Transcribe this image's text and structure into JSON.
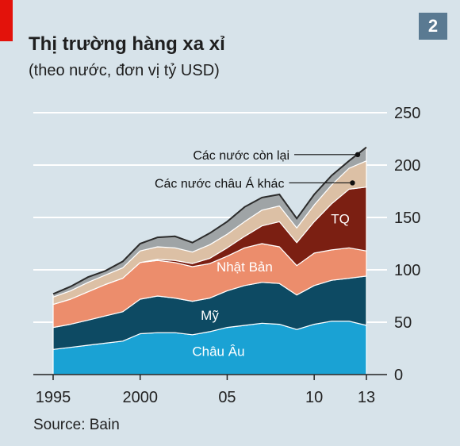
{
  "header": {
    "title": "Thị trường hàng xa xỉ",
    "subtitle": "(theo nước, đơn vị tỷ USD)",
    "figure_number": "2",
    "source": "Source: Bain"
  },
  "colors": {
    "background": "#d7e3ea",
    "accent_red": "#e3120b",
    "badge": "#5a7a92",
    "chau_au": "#1aa2d4",
    "my": "#0d4a63",
    "nhat_ban": "#ec8d6c",
    "tq": "#7b1f12",
    "chau_a_khac": "#dcc0a5",
    "con_lai": "#9fa4a6"
  },
  "chart_data": {
    "type": "area",
    "stacked": true,
    "x": [
      1995,
      1996,
      1997,
      1998,
      1999,
      2000,
      2001,
      2002,
      2003,
      2004,
      2005,
      2006,
      2007,
      2008,
      2009,
      2010,
      2011,
      2012,
      2013
    ],
    "ylim": [
      0,
      250
    ],
    "y_ticks": [
      "0",
      "50",
      "100",
      "150",
      "200",
      "250"
    ],
    "x_ticks": [
      {
        "value": 1995,
        "label": "1995"
      },
      {
        "value": 2000,
        "label": "2000"
      },
      {
        "value": 2005,
        "label": "05"
      },
      {
        "value": 2010,
        "label": "10"
      },
      {
        "value": 2013,
        "label": "13"
      }
    ],
    "series": [
      {
        "name": "Châu Âu",
        "color": "#1aa2d4",
        "label_color": "#ffffff",
        "values": [
          24,
          26,
          28,
          30,
          32,
          39,
          40,
          40,
          38,
          41,
          45,
          47,
          49,
          48,
          43,
          48,
          51,
          51,
          47
        ]
      },
      {
        "name": "Mỹ",
        "color": "#0d4a63",
        "label_color": "#ffffff",
        "values": [
          21,
          22,
          24,
          26,
          28,
          33,
          35,
          33,
          32,
          32,
          35,
          38,
          39,
          39,
          33,
          37,
          39,
          41,
          47
        ]
      },
      {
        "name": "Nhật Bản",
        "color": "#ec8d6c",
        "label_color": "#ffffff",
        "values": [
          22,
          24,
          27,
          30,
          32,
          35,
          34,
          34,
          33,
          33,
          33,
          36,
          37,
          35,
          28,
          31,
          29,
          29,
          24
        ]
      },
      {
        "name": "TQ",
        "color": "#7b1f12",
        "label_color": "#ffffff",
        "values": [
          0,
          0,
          0,
          0,
          0,
          0,
          1,
          2,
          3,
          5,
          8,
          11,
          17,
          24,
          22,
          30,
          44,
          56,
          61
        ]
      },
      {
        "name": "Các nước châu Á khác",
        "color": "#dcc0a5",
        "label_color": "#111111",
        "values": [
          7,
          8,
          9,
          9,
          10,
          11,
          12,
          12,
          11,
          13,
          13,
          14,
          15,
          15,
          14,
          16,
          18,
          20,
          25
        ]
      },
      {
        "name": "Các nước còn lại",
        "color": "#9fa4a6",
        "label_color": "#111111",
        "values": [
          3,
          4,
          5,
          4,
          6,
          7,
          9,
          11,
          9,
          11,
          12,
          14,
          12,
          11,
          9,
          10,
          9,
          7,
          13
        ]
      }
    ],
    "grid": true,
    "y_axis_position": "right"
  }
}
